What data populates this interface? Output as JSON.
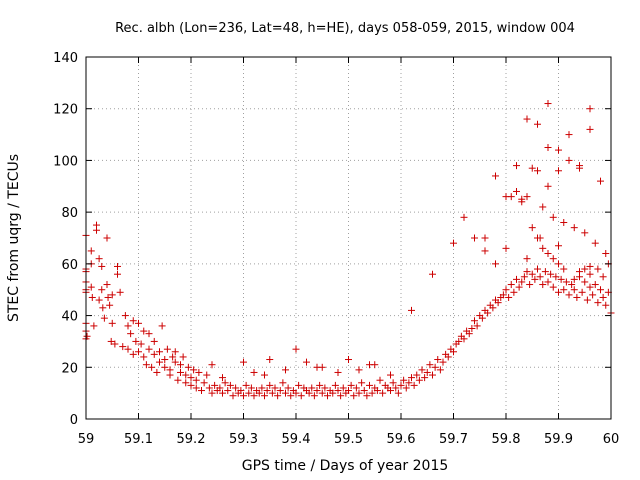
{
  "chart_data": {
    "type": "scatter",
    "title": "Rec. albh (Lon=236, Lat=48, h=HE), days 058-059, 2015, window 004",
    "xlabel": "GPS time / Days of year 2015",
    "ylabel": "STEC from uqrg / TECUs",
    "xlim": [
      59,
      60
    ],
    "ylim": [
      0,
      140
    ],
    "xticks": [
      "59",
      "59.1",
      "59.2",
      "59.3",
      "59.4",
      "59.5",
      "59.6",
      "59.7",
      "59.8",
      "59.9",
      "60"
    ],
    "yticks": [
      "0",
      "20",
      "40",
      "60",
      "80",
      "100",
      "120",
      "140"
    ],
    "grid": true,
    "marker": "+",
    "marker_color": "#cc0000",
    "x": [
      59.0,
      59.0,
      59.0,
      59.0,
      59.0,
      59.0,
      59.0,
      59.0,
      59.0,
      59.002,
      59.01,
      59.01,
      59.01,
      59.012,
      59.015,
      59.02,
      59.02,
      59.025,
      59.025,
      59.03,
      59.03,
      59.032,
      59.035,
      59.04,
      59.04,
      59.042,
      59.045,
      59.048,
      59.05,
      59.05,
      59.055,
      59.06,
      59.06,
      59.065,
      59.07,
      59.075,
      59.08,
      59.08,
      59.085,
      59.09,
      59.09,
      59.095,
      59.1,
      59.1,
      59.105,
      59.11,
      59.11,
      59.115,
      59.12,
      59.12,
      59.125,
      59.13,
      59.13,
      59.135,
      59.14,
      59.14,
      59.145,
      59.15,
      59.15,
      59.155,
      59.16,
      59.16,
      59.165,
      59.17,
      59.17,
      59.175,
      59.18,
      59.18,
      59.185,
      59.19,
      59.19,
      59.195,
      59.2,
      59.2,
      59.205,
      59.21,
      59.21,
      59.215,
      59.22,
      59.225,
      59.23,
      59.235,
      59.24,
      59.245,
      59.25,
      59.255,
      59.26,
      59.265,
      59.27,
      59.275,
      59.28,
      59.285,
      59.29,
      59.295,
      59.3,
      59.305,
      59.31,
      59.315,
      59.32,
      59.325,
      59.33,
      59.335,
      59.34,
      59.345,
      59.35,
      59.355,
      59.36,
      59.365,
      59.37,
      59.375,
      59.38,
      59.385,
      59.39,
      59.395,
      59.4,
      59.405,
      59.41,
      59.415,
      59.42,
      59.425,
      59.43,
      59.435,
      59.44,
      59.445,
      59.45,
      59.455,
      59.46,
      59.465,
      59.47,
      59.475,
      59.48,
      59.485,
      59.49,
      59.495,
      59.5,
      59.505,
      59.51,
      59.515,
      59.52,
      59.525,
      59.53,
      59.535,
      59.54,
      59.545,
      59.55,
      59.555,
      59.56,
      59.565,
      59.57,
      59.575,
      59.58,
      59.585,
      59.59,
      59.595,
      59.6,
      59.605,
      59.61,
      59.615,
      59.62,
      59.625,
      59.63,
      59.635,
      59.64,
      59.645,
      59.65,
      59.655,
      59.66,
      59.665,
      59.67,
      59.675,
      59.68,
      59.685,
      59.69,
      59.695,
      59.7,
      59.705,
      59.71,
      59.715,
      59.72,
      59.725,
      59.73,
      59.735,
      59.74,
      59.745,
      59.75,
      59.755,
      59.76,
      59.765,
      59.77,
      59.775,
      59.78,
      59.785,
      59.79,
      59.795,
      59.8,
      59.805,
      59.81,
      59.815,
      59.82,
      59.825,
      59.83,
      59.835,
      59.84,
      59.845,
      59.85,
      59.855,
      59.86,
      59.865,
      59.87,
      59.875,
      59.88,
      59.885,
      59.89,
      59.895,
      59.9,
      59.905,
      59.91,
      59.915,
      59.92,
      59.925,
      59.93,
      59.935,
      59.94,
      59.945,
      59.95,
      59.955,
      59.96,
      59.965,
      59.97,
      59.975,
      59.98,
      59.985,
      59.99,
      59.995,
      60.0,
      59.24,
      59.3,
      59.35,
      59.4,
      59.45,
      59.5,
      59.55,
      59.32,
      59.38,
      59.42,
      59.48,
      59.52,
      59.58,
      59.26,
      59.34,
      59.44,
      59.54,
      59.62,
      59.66,
      59.7,
      59.72,
      59.74,
      59.76,
      59.78,
      59.8,
      59.82,
      59.84,
      59.86,
      59.88,
      59.9,
      59.92,
      59.94,
      59.96,
      59.98,
      59.82,
      59.84,
      59.86,
      59.88,
      59.9,
      59.92,
      59.94,
      59.96,
      59.81,
      59.83,
      59.85,
      59.87,
      59.89,
      59.91,
      59.93,
      59.95,
      59.97,
      59.99,
      59.76,
      59.78,
      59.8,
      59.84,
      59.86,
      59.87,
      59.88,
      59.89,
      59.9,
      59.91,
      59.93,
      59.95,
      59.96,
      59.975,
      59.985,
      59.995,
      59.96,
      59.94,
      59.88,
      59.9,
      59.85,
      59.83,
      59.865
    ],
    "y": [
      71,
      58,
      57,
      53,
      50,
      49,
      37,
      34,
      31,
      32,
      65,
      60,
      51,
      47,
      36,
      75,
      73,
      62,
      46,
      59,
      50,
      43,
      39,
      70,
      52,
      47,
      44,
      30,
      48,
      37,
      29,
      59,
      56,
      49,
      28,
      40,
      36,
      27,
      33,
      25,
      38,
      30,
      37,
      26,
      29,
      24,
      34,
      21,
      27,
      33,
      20,
      25,
      30,
      18,
      22,
      26,
      36,
      20,
      23,
      27,
      17,
      19,
      24,
      22,
      26,
      15,
      18,
      21,
      24,
      14,
      17,
      20,
      13,
      16,
      19,
      12,
      15,
      18,
      11,
      14,
      17,
      12,
      10,
      13,
      11,
      12,
      10,
      14,
      11,
      13,
      9,
      12,
      10,
      11,
      9,
      13,
      10,
      12,
      9,
      11,
      10,
      12,
      9,
      11,
      13,
      10,
      12,
      9,
      11,
      14,
      10,
      12,
      9,
      11,
      10,
      13,
      9,
      12,
      11,
      10,
      12,
      9,
      11,
      13,
      10,
      12,
      9,
      11,
      10,
      13,
      11,
      9,
      12,
      10,
      11,
      13,
      9,
      12,
      10,
      14,
      11,
      9,
      13,
      10,
      12,
      11,
      15,
      10,
      13,
      12,
      11,
      14,
      12,
      10,
      13,
      15,
      12,
      14,
      16,
      13,
      17,
      15,
      19,
      16,
      18,
      21,
      17,
      20,
      23,
      19,
      22,
      25,
      24,
      27,
      26,
      29,
      30,
      32,
      31,
      34,
      33,
      35,
      38,
      36,
      40,
      39,
      42,
      41,
      44,
      43,
      46,
      45,
      47,
      48,
      50,
      47,
      52,
      49,
      54,
      51,
      53,
      55,
      57,
      52,
      56,
      54,
      58,
      55,
      52,
      57,
      53,
      56,
      51,
      55,
      49,
      54,
      50,
      53,
      48,
      52,
      50,
      47,
      55,
      49,
      53,
      46,
      51,
      48,
      52,
      45,
      50,
      47,
      44,
      49,
      41,
      21,
      22,
      23,
      27,
      20,
      23,
      21,
      18,
      19,
      22,
      18,
      19,
      17,
      16,
      17,
      20,
      21,
      42,
      56,
      68,
      78,
      70,
      70,
      94,
      86,
      98,
      116,
      114,
      122,
      104,
      110,
      97,
      120,
      92,
      88,
      86,
      96,
      90,
      96,
      100,
      98,
      112,
      86,
      84,
      74,
      82,
      78,
      76,
      74,
      72,
      68,
      64,
      65,
      60,
      66,
      62,
      70,
      66,
      64,
      62,
      60,
      58,
      54,
      58,
      56,
      58,
      55,
      60,
      59,
      57,
      105,
      67,
      97,
      85,
      70
    ]
  }
}
